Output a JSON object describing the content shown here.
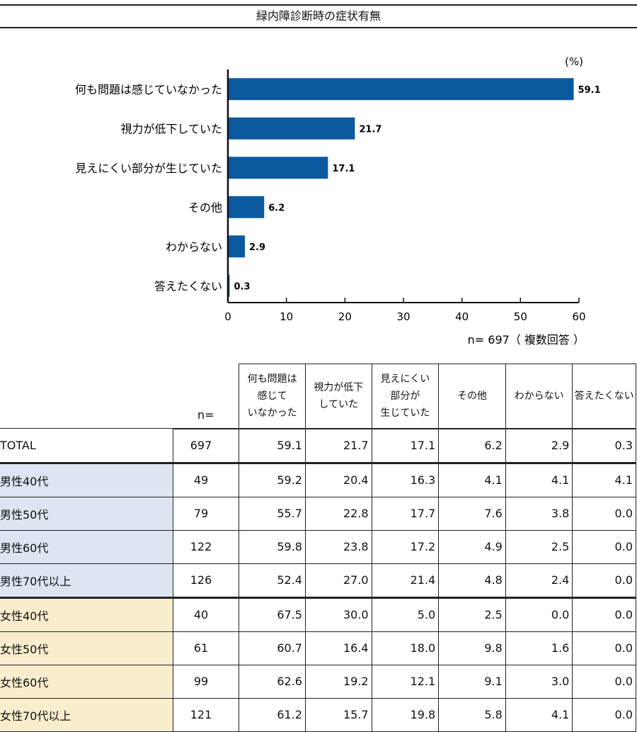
{
  "title": "緑内障診断時の症状有無",
  "chart_data": {
    "type": "bar",
    "orientation": "horizontal",
    "unit_label": "(%)",
    "categories": [
      "何も問題は感じていなかった",
      "視力が低下していた",
      "見えにくい部分が生じていた",
      "その他",
      "わからない",
      "答えたくない"
    ],
    "values": [
      59.1,
      21.7,
      17.1,
      6.2,
      2.9,
      0.3
    ],
    "value_labels": [
      "59.1",
      "21.7",
      "17.1",
      "6.2",
      "2.9",
      "0.3"
    ],
    "xlim": [
      0,
      60
    ],
    "xticks": [
      "0",
      "10",
      "20",
      "30",
      "40",
      "50",
      "60"
    ],
    "tick_values": [
      0,
      10,
      20,
      30,
      40,
      50,
      60
    ],
    "bar_color": "#0b5aa0",
    "note": "n= 697（ 複数回答 ）"
  },
  "table": {
    "n_header": "n=",
    "columns": [
      "何も問題は\n感じて\nいなかった",
      "視力が低下\nしていた",
      "見えにくい\n部分が\n生じていた",
      "その他",
      "わからない",
      "答えたくない"
    ],
    "rows": [
      {
        "label": "TOTAL",
        "n": "697",
        "values": [
          "59.1",
          "21.7",
          "17.1",
          "6.2",
          "2.9",
          "0.3"
        ],
        "group": "total"
      },
      {
        "label": "男性40代",
        "n": "49",
        "values": [
          "59.2",
          "20.4",
          "16.3",
          "4.1",
          "4.1",
          "4.1"
        ],
        "group": "male"
      },
      {
        "label": "男性50代",
        "n": "79",
        "values": [
          "55.7",
          "22.8",
          "17.7",
          "7.6",
          "3.8",
          "0.0"
        ],
        "group": "male"
      },
      {
        "label": "男性60代",
        "n": "122",
        "values": [
          "59.8",
          "23.8",
          "17.2",
          "4.9",
          "2.5",
          "0.0"
        ],
        "group": "male"
      },
      {
        "label": "男性70代以上",
        "n": "126",
        "values": [
          "52.4",
          "27.0",
          "21.4",
          "4.8",
          "2.4",
          "0.0"
        ],
        "group": "male"
      },
      {
        "label": "女性40代",
        "n": "40",
        "values": [
          "67.5",
          "30.0",
          "5.0",
          "2.5",
          "0.0",
          "0.0"
        ],
        "group": "female"
      },
      {
        "label": "女性50代",
        "n": "61",
        "values": [
          "60.7",
          "16.4",
          "18.0",
          "9.8",
          "1.6",
          "0.0"
        ],
        "group": "female"
      },
      {
        "label": "女性60代",
        "n": "99",
        "values": [
          "62.6",
          "19.2",
          "12.1",
          "9.1",
          "3.0",
          "0.0"
        ],
        "group": "female"
      },
      {
        "label": "女性70代以上",
        "n": "121",
        "values": [
          "61.2",
          "15.7",
          "19.8",
          "5.8",
          "4.1",
          "0.0"
        ],
        "group": "female"
      }
    ],
    "colors": {
      "male": "#dde5f2",
      "female": "#f8edcc"
    }
  }
}
